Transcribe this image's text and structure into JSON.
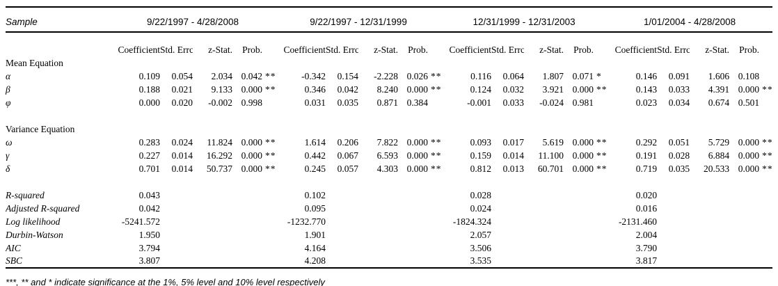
{
  "table": {
    "sample_label": "Sample",
    "panels": [
      "9/22/1997 - 4/28/2008",
      "9/22/1997 - 12/31/1999",
      "12/31/1999 - 12/31/2003",
      "1/01/2004 - 4/28/2008"
    ],
    "column_headers": [
      "Coefficient",
      "Std. Errc",
      "z-Stat.",
      "Prob."
    ],
    "sections": [
      {
        "title": "Mean Equation",
        "rows": [
          {
            "label": "α",
            "cells": [
              [
                "0.109",
                "0.054",
                "2.034",
                "0.042",
                "**"
              ],
              [
                "-0.342",
                "0.154",
                "-2.228",
                "0.026",
                "**"
              ],
              [
                "0.116",
                "0.064",
                "1.807",
                "0.071",
                "*"
              ],
              [
                "0.146",
                "0.091",
                "1.606",
                "0.108",
                ""
              ]
            ]
          },
          {
            "label": "β",
            "cells": [
              [
                "0.188",
                "0.021",
                "9.133",
                "0.000",
                "***"
              ],
              [
                "0.346",
                "0.042",
                "8.240",
                "0.000",
                "***"
              ],
              [
                "0.124",
                "0.032",
                "3.921",
                "0.000",
                "***"
              ],
              [
                "0.143",
                "0.033",
                "4.391",
                "0.000",
                "***"
              ]
            ]
          },
          {
            "label": "φ",
            "cells": [
              [
                "0.000",
                "0.020",
                "-0.002",
                "0.998",
                ""
              ],
              [
                "0.031",
                "0.035",
                "0.871",
                "0.384",
                ""
              ],
              [
                "-0.001",
                "0.033",
                "-0.024",
                "0.981",
                ""
              ],
              [
                "0.023",
                "0.034",
                "0.674",
                "0.501",
                ""
              ]
            ]
          }
        ]
      },
      {
        "title": "Variance Equation",
        "rows": [
          {
            "label": "ω",
            "cells": [
              [
                "0.283",
                "0.024",
                "11.824",
                "0.000",
                "***"
              ],
              [
                "1.614",
                "0.206",
                "7.822",
                "0.000",
                "***"
              ],
              [
                "0.093",
                "0.017",
                "5.619",
                "0.000",
                "***"
              ],
              [
                "0.292",
                "0.051",
                "5.729",
                "0.000",
                "***"
              ]
            ]
          },
          {
            "label": "γ",
            "cells": [
              [
                "0.227",
                "0.014",
                "16.292",
                "0.000",
                "***"
              ],
              [
                "0.442",
                "0.067",
                "6.593",
                "0.000",
                "***"
              ],
              [
                "0.159",
                "0.014",
                "11.100",
                "0.000",
                "***"
              ],
              [
                "0.191",
                "0.028",
                "6.884",
                "0.000",
                "***"
              ]
            ]
          },
          {
            "label": "δ",
            "cells": [
              [
                "0.701",
                "0.014",
                "50.737",
                "0.000",
                "***"
              ],
              [
                "0.245",
                "0.057",
                "4.303",
                "0.000",
                "***"
              ],
              [
                "0.812",
                "0.013",
                "60.701",
                "0.000",
                "***"
              ],
              [
                "0.719",
                "0.035",
                "20.533",
                "0.000",
                "***"
              ]
            ]
          }
        ]
      }
    ],
    "stats": [
      {
        "label": "R-squared",
        "values": [
          "0.043",
          "0.102",
          "0.028",
          "0.020"
        ]
      },
      {
        "label": "Adjusted R-squared",
        "values": [
          "0.042",
          "0.095",
          "0.024",
          "0.016"
        ]
      },
      {
        "label": "Log likelihood",
        "values": [
          "-5241.572",
          "-1232.770",
          "-1824.324",
          "-2131.460"
        ]
      },
      {
        "label": "Durbin-Watson",
        "values": [
          "1.950",
          "1.901",
          "2.057",
          "2.004"
        ]
      },
      {
        "label": "AIC",
        "values": [
          "3.794",
          "4.164",
          "3.506",
          "3.790"
        ]
      },
      {
        "label": "SBC",
        "values": [
          "3.807",
          "4.208",
          "3.535",
          "3.817"
        ]
      }
    ],
    "footnote": "***, ** and * indicate significance at the 1%, 5% level and 10% level respectively"
  }
}
